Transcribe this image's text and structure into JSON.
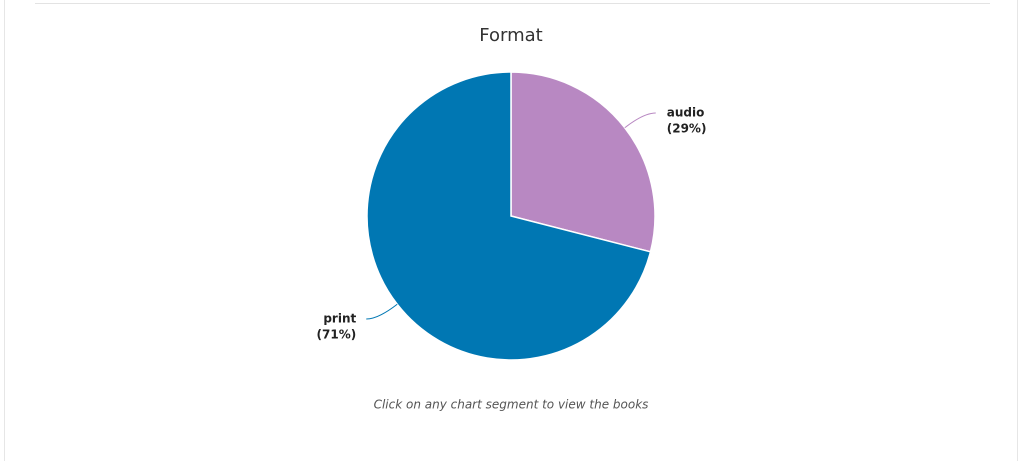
{
  "chart_data": {
    "type": "pie",
    "title": "Format",
    "categories": [
      "audio",
      "print"
    ],
    "values": [
      29,
      71
    ],
    "value_labels": [
      "(29%)",
      "(71%)"
    ],
    "colors": [
      "#b888c2",
      "#0077b3"
    ],
    "caption": "Click on any chart segment to view the books"
  }
}
